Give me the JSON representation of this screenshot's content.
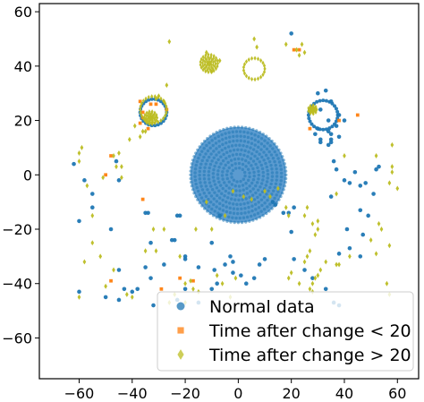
{
  "chart_data": {
    "type": "scatter",
    "title": "",
    "xlabel": "",
    "ylabel": "",
    "xlim": [
      -75,
      68
    ],
    "ylim": [
      -75,
      63
    ],
    "xticks": [
      -60,
      -40,
      -20,
      0,
      20,
      40,
      60
    ],
    "yticks": [
      60,
      40,
      20,
      0,
      -20,
      -40,
      -60
    ],
    "xtick_labels": [
      "−60",
      "−40",
      "−20",
      "0",
      "20",
      "40",
      "60"
    ],
    "ytick_labels": [
      "60",
      "40",
      "20",
      "0",
      "−20",
      "−40",
      "−60"
    ],
    "grid": false,
    "legend_position": "bottom-right",
    "series": [
      {
        "name": "Normal data",
        "marker": "circle",
        "color": "#1f77b4",
        "central_disc": {
          "center": [
            0,
            0
          ],
          "radius": 18
        },
        "ring_clusters": [
          {
            "center": [
              32,
              22
            ],
            "radius": 5.5
          },
          {
            "center": [
              -32,
              23
            ],
            "radius": 5
          }
        ],
        "points": [
          [
            -62,
            4
          ],
          [
            -58,
            -2
          ],
          [
            -55,
            -7
          ],
          [
            -60,
            -17
          ],
          [
            -46,
            5
          ],
          [
            -45,
            -2
          ],
          [
            -48,
            -20
          ],
          [
            -45,
            -35
          ],
          [
            -35,
            -14
          ],
          [
            -34,
            -14
          ],
          [
            -33,
            -25
          ],
          [
            -23,
            -15
          ],
          [
            -22,
            -15
          ],
          [
            -25,
            -24
          ],
          [
            -24,
            -24
          ],
          [
            -10,
            -25
          ],
          [
            -7,
            -15
          ],
          [
            -3,
            -30
          ],
          [
            -2,
            -36
          ],
          [
            -20,
            -42
          ],
          [
            -23,
            -46
          ],
          [
            -32,
            -48
          ],
          [
            -33,
            -38
          ],
          [
            -35,
            -34
          ],
          [
            -45,
            -46
          ],
          [
            -50,
            -45
          ],
          [
            -60,
            -43
          ],
          [
            -15,
            -47
          ],
          [
            -10,
            -42
          ],
          [
            -8,
            -40
          ],
          [
            1,
            -37
          ],
          [
            3,
            -40
          ],
          [
            6,
            -38
          ],
          [
            8,
            -33
          ],
          [
            10,
            -31
          ],
          [
            17,
            -14
          ],
          [
            19,
            -14
          ],
          [
            21,
            -12
          ],
          [
            20,
            -21
          ],
          [
            21,
            -31
          ],
          [
            25,
            -35
          ],
          [
            28,
            -38
          ],
          [
            33,
            -42
          ],
          [
            38,
            -48
          ],
          [
            36,
            -47
          ],
          [
            38,
            -29
          ],
          [
            42,
            -27
          ],
          [
            46,
            -30
          ],
          [
            41,
            -20
          ],
          [
            47,
            -22
          ],
          [
            49,
            -15
          ],
          [
            46,
            -13
          ],
          [
            51,
            -7
          ],
          [
            46,
            -4
          ],
          [
            40,
            -2
          ],
          [
            48,
            -3
          ],
          [
            35,
            -8
          ],
          [
            36,
            5
          ],
          [
            42,
            -3
          ],
          [
            52,
            2
          ],
          [
            53,
            3
          ],
          [
            44,
            1
          ],
          [
            37,
            2
          ],
          [
            -55,
            -12
          ],
          [
            -40,
            -43
          ],
          [
            -28,
            -33
          ],
          [
            -20,
            -30
          ],
          [
            -20,
            -31
          ],
          [
            -38,
            -42
          ],
          [
            -43,
            -42
          ],
          [
            -15,
            -34
          ],
          [
            -9,
            -35
          ],
          [
            -5,
            -33
          ],
          [
            -2,
            -32
          ],
          [
            13,
            -10
          ],
          [
            14,
            -11
          ],
          [
            30,
            30
          ],
          [
            33,
            31
          ],
          [
            29,
            15
          ],
          [
            34,
            16
          ],
          [
            37,
            18
          ],
          [
            38,
            22
          ],
          [
            27,
            24
          ],
          [
            20,
            52
          ],
          [
            31,
            24
          ],
          [
            34,
            20
          ],
          [
            35,
            15
          ],
          [
            35,
            27
          ],
          [
            30,
            17
          ],
          [
            40,
            20
          ],
          [
            38,
            14
          ],
          [
            35,
            12
          ],
          [
            35,
            13
          ],
          [
            31,
            13
          ],
          [
            31,
            12
          ],
          [
            34,
            11
          ]
        ]
      },
      {
        "name": "Time after change < 20",
        "marker": "square",
        "color": "#ff7f0e",
        "points": [
          [
            -37,
            27
          ],
          [
            -36,
            23
          ],
          [
            -34,
            17
          ],
          [
            -31,
            26
          ],
          [
            -27,
            24
          ],
          [
            -37,
            19
          ],
          [
            -48,
            7
          ],
          [
            -50,
            0
          ],
          [
            21,
            46
          ],
          [
            23,
            46
          ],
          [
            -22,
            -38
          ],
          [
            -48,
            -39
          ],
          [
            -36,
            -9
          ],
          [
            -17,
            -39
          ],
          [
            -29,
            -42
          ],
          [
            27,
            17
          ],
          [
            45,
            22
          ],
          [
            38,
            20
          ],
          [
            -36,
            21
          ],
          [
            -33,
            26
          ]
        ]
      },
      {
        "name": "Time after change > 20",
        "marker": "diamond",
        "color": "#bcbd22",
        "ring_clusters": [
          {
            "center": [
              -32,
              24
            ],
            "radius": 5
          },
          {
            "center": [
              6,
              39
            ],
            "radius": 4
          }
        ],
        "blob_clusters": [
          {
            "center": [
              -11,
              41
            ],
            "radius": 3.3
          },
          {
            "center": [
              -33,
              21
            ],
            "radius": 2.4
          },
          {
            "center": [
              28,
              24
            ],
            "radius": 1.6
          }
        ],
        "points": [
          [
            -60,
            8
          ],
          [
            -59,
            10
          ],
          [
            -60,
            5
          ],
          [
            -57,
            -4
          ],
          [
            -47,
            7
          ],
          [
            -46,
            3
          ],
          [
            -44,
            3
          ],
          [
            -44,
            -1
          ],
          [
            -45,
            8
          ],
          [
            -51,
            -1
          ],
          [
            -55,
            -15
          ],
          [
            -55,
            -25
          ],
          [
            -52,
            -30
          ],
          [
            -58,
            -32
          ],
          [
            -60,
            -45
          ],
          [
            -37,
            14
          ],
          [
            -39,
            18
          ],
          [
            -41,
            13
          ],
          [
            -27,
            33
          ],
          [
            -26,
            49
          ],
          [
            -10,
            38
          ],
          [
            7,
            47
          ],
          [
            6,
            50
          ],
          [
            -7,
            42
          ],
          [
            -12,
            45
          ],
          [
            22,
            46
          ],
          [
            24,
            48
          ],
          [
            25,
            45
          ],
          [
            23,
            44
          ],
          [
            -32,
            -20
          ],
          [
            -31,
            -28
          ],
          [
            -28,
            -20
          ],
          [
            -35,
            -28
          ],
          [
            -22,
            -30
          ],
          [
            -20,
            -40
          ],
          [
            -18,
            -39
          ],
          [
            -17,
            -42
          ],
          [
            -15,
            -43
          ],
          [
            -8,
            -37
          ],
          [
            -6,
            -40
          ],
          [
            -2,
            -6
          ],
          [
            2,
            -8
          ],
          [
            5,
            -9
          ],
          [
            10,
            -6
          ],
          [
            15,
            -5
          ],
          [
            12,
            -8
          ],
          [
            18,
            -12
          ],
          [
            19,
            -15
          ],
          [
            25,
            -15
          ],
          [
            26,
            -12
          ],
          [
            28,
            -18
          ],
          [
            30,
            -20
          ],
          [
            29,
            -22
          ],
          [
            30,
            -17
          ],
          [
            27,
            -28
          ],
          [
            26,
            -30
          ],
          [
            28,
            -40
          ],
          [
            27,
            -42
          ],
          [
            28,
            -43
          ],
          [
            29,
            -38
          ],
          [
            30,
            -37
          ],
          [
            33,
            -32
          ],
          [
            31,
            -35
          ],
          [
            25,
            -32
          ],
          [
            20,
            -36
          ],
          [
            23,
            -40
          ],
          [
            19,
            -38
          ],
          [
            37,
            -33
          ],
          [
            38,
            -33
          ],
          [
            42,
            -30
          ],
          [
            52,
            -29
          ],
          [
            56,
            -40
          ],
          [
            57,
            -44
          ],
          [
            57,
            -26
          ],
          [
            58,
            1
          ],
          [
            58,
            3
          ],
          [
            58,
            11
          ],
          [
            57,
            -3
          ],
          [
            60,
            -5
          ],
          [
            53,
            -18
          ],
          [
            54,
            -20
          ],
          [
            40,
            7
          ],
          [
            37,
            -7
          ],
          [
            52,
            7
          ],
          [
            50,
            -24
          ],
          [
            -16,
            -20
          ],
          [
            -10,
            -20
          ],
          [
            -5,
            -15
          ],
          [
            -12,
            -10
          ],
          [
            -1,
            -38
          ],
          [
            -3,
            -45
          ],
          [
            -24,
            -44
          ],
          [
            -26,
            -47
          ],
          [
            -40,
            -45
          ],
          [
            -42,
            -44
          ],
          [
            -50,
            -41
          ],
          [
            -47,
            -35
          ],
          [
            18,
            48
          ],
          [
            -20,
            -47
          ],
          [
            -31,
            28
          ],
          [
            -30,
            29
          ],
          [
            -28,
            27
          ],
          [
            -36,
            16
          ],
          [
            -35,
            16
          ]
        ]
      }
    ]
  }
}
